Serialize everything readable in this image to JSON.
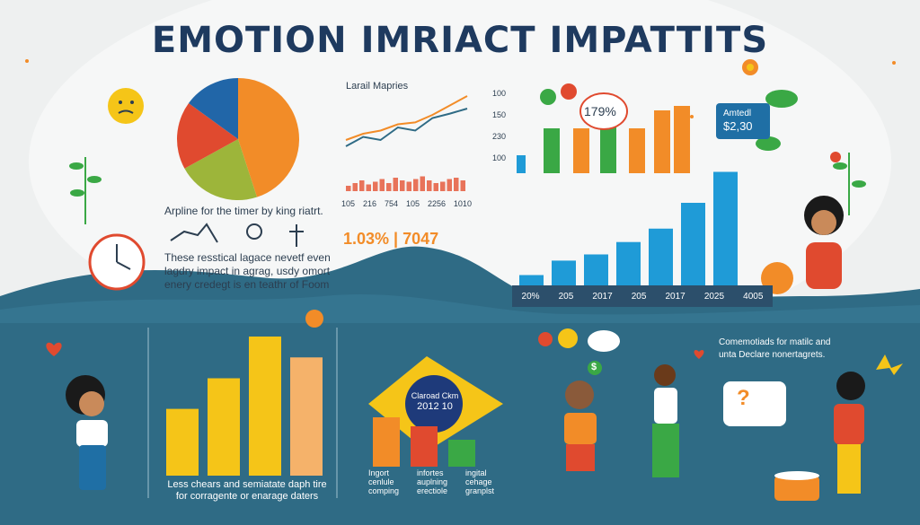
{
  "title": "EMOTION IMRIACT IMPATTITS",
  "colors": {
    "navy": "#1e3a5f",
    "teal": "#2f6b85",
    "light": "#eef0f0",
    "orange": "#f28c28",
    "yellow": "#f5c518",
    "green": "#3aa845",
    "blue": "#1f9bd7",
    "red": "#e04a2f"
  },
  "pie": {
    "caption": "Arpline for the timer by king riatrt.",
    "chart_data": {
      "type": "pie",
      "values": [
        45,
        22,
        18,
        15
      ],
      "colors": [
        "#f28c28",
        "#9db53a",
        "#e04a2f",
        "#2166a8"
      ]
    }
  },
  "timeline_note": "These resstical lagace nevetf even\nlagdry impact in agrag, usdy omort\nenery credegt is en teathr of Foom",
  "line_chart": {
    "title": "Larail Mapries",
    "x_labels": [
      "105",
      "216",
      "754",
      "105",
      "2256",
      "1010"
    ],
    "chart_data": {
      "type": "line",
      "series": [
        {
          "values": [
            20,
            30,
            35,
            45,
            48,
            60,
            75,
            90
          ]
        },
        {
          "values": [
            10,
            25,
            20,
            40,
            35,
            55,
            62,
            70
          ]
        }
      ],
      "bars": [
        4,
        6,
        8,
        5,
        7,
        9,
        6,
        10,
        8,
        7,
        9,
        11,
        8,
        6,
        7,
        9,
        10,
        8
      ]
    }
  },
  "stat_text": "1.03% | 7047",
  "top_bars": {
    "y_labels": [
      "100",
      "150",
      "230",
      "100"
    ],
    "badge": "179%",
    "chart_data": {
      "type": "bar",
      "values": [
        20,
        50,
        50,
        55,
        50,
        70,
        75
      ],
      "colors": [
        "#1f9bd7",
        "#3aa845",
        "#f28c28",
        "#3aa845",
        "#f28c28",
        "#f28c28",
        "#f28c28"
      ]
    }
  },
  "ticket": {
    "line1": "Amtedl",
    "line2": "$2,30"
  },
  "blue_bars": {
    "x_labels": [
      "20%",
      "205",
      "2017",
      "205",
      "2017",
      "2025",
      "4005"
    ],
    "chart_data": {
      "type": "bar",
      "values": [
        10,
        24,
        30,
        42,
        55,
        80,
        110
      ]
    }
  },
  "bottom_bars": {
    "caption": "Less chears and semiatate daph tire\nfor corragente or enarage daters",
    "chart_data": {
      "type": "bar",
      "values": [
        48,
        70,
        100,
        85
      ],
      "colors": [
        "#f5c518",
        "#f5c518",
        "#f5c518",
        "#f5b26a"
      ]
    }
  },
  "flag": {
    "line1": "Claroad Ckm",
    "line2": "2012 10"
  },
  "flag_bars": {
    "labels": [
      "Ingort\ncenlule\ncomping",
      "infortes\nauplning\nerectiole",
      "ingital\ncehage\ngranplst"
    ],
    "chart_data": {
      "type": "bar",
      "values": [
        55,
        45,
        30
      ],
      "colors": [
        "#f28c28",
        "#e04a2f",
        "#3aa845"
      ]
    }
  },
  "right_note": "Comemotiads for matilc and\nunta Declare nonertagrets.",
  "speech_symbols": {
    "q": "?",
    "s": "$"
  }
}
